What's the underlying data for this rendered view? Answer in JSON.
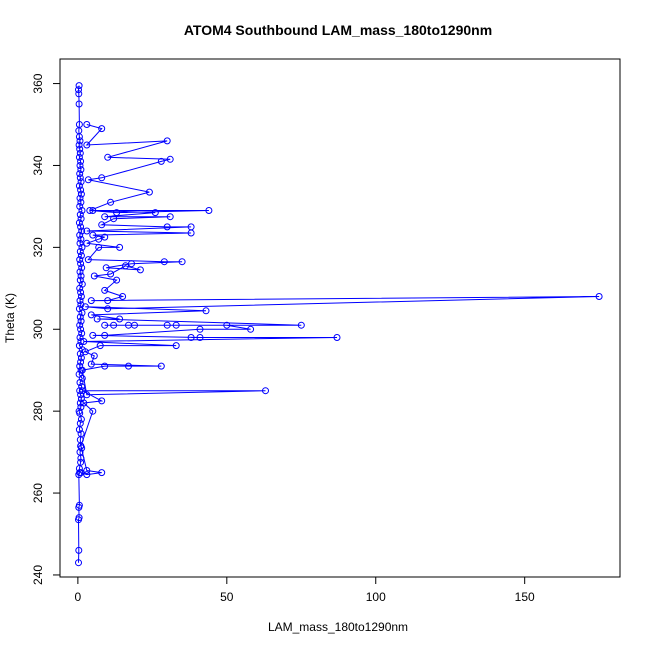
{
  "chart_data": {
    "type": "scatter",
    "title": "ATOM4 Southbound LAM_mass_180to1290nm",
    "xlabel": "LAM_mass_180to1290nm",
    "ylabel": "Theta (K)",
    "xlim": [
      -6,
      182
    ],
    "ylim": [
      239.5,
      366
    ],
    "xticks": [
      0,
      50,
      100,
      150
    ],
    "yticks": [
      240,
      260,
      280,
      300,
      320,
      340,
      360
    ],
    "grid": false,
    "legend": "none",
    "color": "#0000ff",
    "series": [
      {
        "mode": "lines+markers",
        "points": [
          [
            0.2,
            243
          ],
          [
            0.3,
            246
          ],
          [
            0.2,
            253.5
          ],
          [
            0.4,
            254
          ],
          [
            0.3,
            256.5
          ],
          [
            0.5,
            257
          ],
          [
            0.3,
            264.5
          ],
          [
            0.6,
            265
          ],
          [
            0.5,
            266
          ],
          [
            0.9,
            267.5
          ],
          [
            1.0,
            268.5
          ],
          [
            0.7,
            270
          ],
          [
            1.3,
            271
          ],
          [
            0.9,
            271.5
          ],
          [
            0.8,
            273
          ],
          [
            1.1,
            274.5
          ],
          [
            0.5,
            275.5
          ],
          [
            0.8,
            277
          ],
          [
            1.2,
            278
          ],
          [
            0.6,
            279.5
          ],
          [
            0.4,
            280
          ],
          [
            1.0,
            281
          ],
          [
            0.8,
            282
          ],
          [
            1.2,
            283
          ],
          [
            0.9,
            284
          ],
          [
            0.6,
            285
          ],
          [
            1.3,
            286
          ],
          [
            0.7,
            287
          ],
          [
            1.5,
            288
          ],
          [
            0.4,
            289
          ],
          [
            1.1,
            290
          ],
          [
            0.6,
            291
          ],
          [
            0.9,
            292
          ],
          [
            1.2,
            293
          ],
          [
            0.8,
            294
          ],
          [
            1.5,
            295
          ],
          [
            0.5,
            296
          ],
          [
            1.0,
            297
          ],
          [
            0.7,
            298
          ],
          [
            1.3,
            299
          ],
          [
            0.9,
            300
          ],
          [
            0.6,
            301
          ],
          [
            1.1,
            302
          ],
          [
            0.8,
            303
          ],
          [
            1.4,
            304
          ],
          [
            0.5,
            305
          ],
          [
            1.0,
            306
          ],
          [
            0.7,
            307
          ],
          [
            1.2,
            308
          ],
          [
            0.9,
            309
          ],
          [
            0.6,
            310
          ],
          [
            1.5,
            311
          ],
          [
            0.8,
            312
          ],
          [
            1.1,
            313
          ],
          [
            0.7,
            314
          ],
          [
            1.3,
            315
          ],
          [
            0.9,
            316
          ],
          [
            0.6,
            317
          ],
          [
            1.2,
            318
          ],
          [
            0.8,
            319
          ],
          [
            1.4,
            320
          ],
          [
            0.7,
            321
          ],
          [
            1.0,
            322
          ],
          [
            0.6,
            323
          ],
          [
            1.3,
            324
          ],
          [
            0.9,
            325
          ],
          [
            0.5,
            326
          ],
          [
            1.1,
            327
          ],
          [
            0.8,
            328
          ],
          [
            1.4,
            329
          ],
          [
            0.6,
            330
          ],
          [
            1.0,
            331
          ],
          [
            0.7,
            332
          ],
          [
            1.2,
            333
          ],
          [
            0.9,
            334
          ],
          [
            0.5,
            335
          ],
          [
            1.1,
            336
          ],
          [
            0.8,
            337
          ],
          [
            0.6,
            338
          ],
          [
            1.0,
            339
          ],
          [
            0.7,
            340
          ],
          [
            0.9,
            341
          ],
          [
            0.5,
            342
          ],
          [
            0.8,
            343
          ],
          [
            0.6,
            344
          ],
          [
            0.4,
            345
          ],
          [
            0.7,
            346
          ],
          [
            0.5,
            347
          ],
          [
            0.3,
            348.5
          ],
          [
            0.5,
            350
          ],
          [
            0.4,
            355
          ],
          [
            0.3,
            357.5
          ],
          [
            0.2,
            358.5
          ],
          [
            0.4,
            359.5
          ]
        ]
      },
      {
        "mode": "lines+markers",
        "points": [
          [
            1.0,
            265
          ],
          [
            3.0,
            264.5
          ],
          [
            8.0,
            265
          ],
          [
            3.0,
            265.5
          ],
          [
            1.0,
            271.5
          ],
          [
            5.0,
            280
          ],
          [
            2.0,
            282
          ],
          [
            8.0,
            282.5
          ],
          [
            1.5,
            285
          ],
          [
            63,
            285
          ],
          [
            3.0,
            284
          ],
          [
            1.5,
            290
          ],
          [
            9.0,
            291
          ],
          [
            17,
            291
          ],
          [
            28,
            291
          ],
          [
            4.5,
            291.5
          ],
          [
            5.5,
            293.5
          ],
          [
            2.5,
            294.5
          ],
          [
            7.5,
            296
          ],
          [
            33,
            296
          ],
          [
            2.0,
            297
          ],
          [
            87,
            298
          ],
          [
            38,
            298
          ],
          [
            41,
            298
          ],
          [
            5.0,
            298.5
          ],
          [
            9.0,
            298.5
          ],
          [
            41,
            300
          ],
          [
            58,
            300
          ],
          [
            50,
            301
          ],
          [
            33,
            301
          ],
          [
            30,
            301
          ],
          [
            19,
            301
          ],
          [
            17,
            301
          ],
          [
            12,
            301
          ],
          [
            9,
            301
          ],
          [
            75,
            301
          ],
          [
            6.5,
            302.5
          ],
          [
            14,
            302.5
          ],
          [
            4.5,
            303.5
          ],
          [
            43,
            304.5
          ],
          [
            2.5,
            305.5
          ],
          [
            10,
            305
          ],
          [
            175,
            308
          ],
          [
            4.5,
            307
          ],
          [
            10,
            307
          ],
          [
            15,
            308
          ],
          [
            9,
            309.5
          ],
          [
            13,
            312
          ],
          [
            5.5,
            313
          ],
          [
            11,
            313.5
          ],
          [
            16,
            315.5
          ],
          [
            21,
            314.5
          ],
          [
            9.5,
            315
          ],
          [
            18,
            316
          ],
          [
            35,
            316.5
          ],
          [
            29,
            316.5
          ],
          [
            3.5,
            317
          ],
          [
            7,
            320
          ],
          [
            14,
            320
          ],
          [
            3,
            321
          ],
          [
            7,
            322
          ],
          [
            9,
            322.5
          ],
          [
            5,
            323
          ],
          [
            38,
            323.5
          ],
          [
            3,
            324
          ],
          [
            38,
            325
          ],
          [
            30,
            325
          ],
          [
            8,
            325.5
          ],
          [
            12,
            327
          ],
          [
            31,
            327.5
          ],
          [
            9,
            327.5
          ],
          [
            26,
            328.5
          ],
          [
            5,
            329
          ],
          [
            44,
            329
          ],
          [
            13,
            328.5
          ],
          [
            4,
            329
          ],
          [
            11,
            331
          ],
          [
            24,
            333.5
          ],
          [
            3.5,
            336.5
          ],
          [
            8,
            337
          ],
          [
            28,
            341
          ],
          [
            31,
            341.5
          ],
          [
            10,
            342
          ],
          [
            30,
            346
          ],
          [
            3,
            345
          ],
          [
            8,
            349
          ],
          [
            3,
            350
          ]
        ]
      }
    ]
  }
}
